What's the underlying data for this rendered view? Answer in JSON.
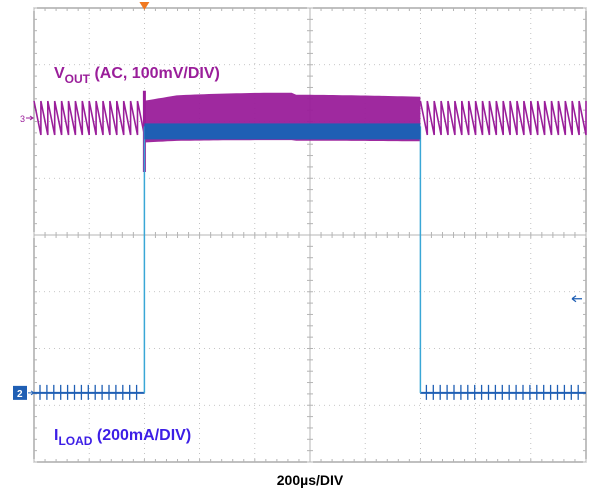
{
  "chart_data": {
    "type": "line",
    "title": "",
    "xlabel": "200µs/DIV",
    "x_unit": "µs",
    "x_per_div_us": 200,
    "x_divisions": 10,
    "y_divisions": 8,
    "x_range_us": [
      0,
      2000
    ],
    "grid": true,
    "series": [
      {
        "name_main": "V",
        "name_sub": "OUT",
        "name_rest": " (AC, 100mV/DIV)",
        "channel": "3",
        "color": "#9a1e9a",
        "coupling": "AC",
        "scale": "100mV/DIV",
        "ripple_period_us": 25,
        "ripple_pp_div": 0.6,
        "load_step_on_us": 400,
        "load_step_off_us": 1400,
        "undershoot_div": 0.6,
        "during_load_band_div": 0.75
      },
      {
        "name_main": "I",
        "name_sub": "LOAD",
        "name_rest": " (200mA/DIV)",
        "channel": "2",
        "color": "#1f5fb4",
        "scale": "200mA/DIV",
        "low_level_div": 0,
        "high_level_div": 5.4,
        "step_on_us": 400,
        "step_off_us": 1400
      }
    ]
  },
  "colors": {
    "grid": "#b4b4b4",
    "frame": "#808080",
    "vout": "#9a1e9a",
    "iload": "#1f5fb4",
    "iload_label": "#3c1ee6",
    "trigger": "#f07820"
  }
}
